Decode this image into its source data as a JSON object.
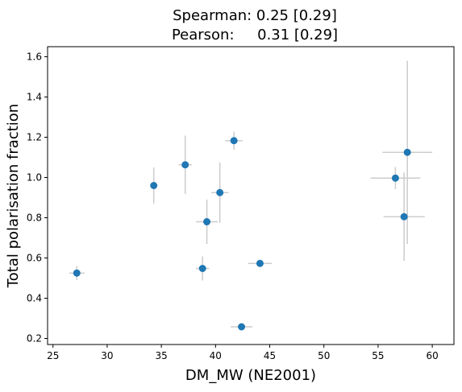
{
  "chart_data": {
    "type": "scatter",
    "title_lines": [
      "Spearman: 0.25 [0.29]",
      "Pearson:     0.31 [0.29]"
    ],
    "xlabel": "DM_MW (NE2001)",
    "ylabel": "Total polarisation fraction",
    "xlim": [
      24.5,
      62.0
    ],
    "ylim": [
      0.17,
      1.65
    ],
    "xticks": [
      25,
      30,
      35,
      40,
      45,
      50,
      55,
      60
    ],
    "yticks": [
      0.2,
      0.4,
      0.6,
      0.8,
      1.0,
      1.2,
      1.4,
      1.6
    ],
    "xtick_labels": [
      "25",
      "30",
      "35",
      "40",
      "45",
      "50",
      "55",
      "60"
    ],
    "ytick_labels": [
      "0.2",
      "0.4",
      "0.6",
      "0.8",
      "1.0",
      "1.2",
      "1.4",
      "1.6"
    ],
    "grid": false,
    "marker_color": "#1f77b4",
    "errorbar_color": "#cccccc",
    "points": [
      {
        "x": 27.2,
        "y": 0.525,
        "xerr": 0.7,
        "yerr": 0.035
      },
      {
        "x": 34.3,
        "y": 0.96,
        "xerr": 0.3,
        "yerr": 0.09
      },
      {
        "x": 37.2,
        "y": 1.063,
        "xerr": 0.6,
        "yerr": 0.145
      },
      {
        "x": 38.8,
        "y": 0.548,
        "xerr": 0.6,
        "yerr": 0.06
      },
      {
        "x": 39.2,
        "y": 0.78,
        "xerr": 1.0,
        "yerr": 0.11
      },
      {
        "x": 40.4,
        "y": 0.925,
        "xerr": 0.8,
        "yerr": 0.15
      },
      {
        "x": 41.7,
        "y": 1.183,
        "xerr": 0.8,
        "yerr": 0.045
      },
      {
        "x": 42.4,
        "y": 0.258,
        "xerr": 1.0,
        "yerr": 0.01
      },
      {
        "x": 44.1,
        "y": 0.573,
        "xerr": 1.1,
        "yerr": 0.01
      },
      {
        "x": 56.6,
        "y": 0.997,
        "xerr": 2.3,
        "yerr": 0.055
      },
      {
        "x": 57.4,
        "y": 0.805,
        "xerr": 1.9,
        "yerr": 0.22
      },
      {
        "x": 57.7,
        "y": 1.125,
        "xerr": 2.3,
        "yerr": 0.455
      }
    ]
  }
}
